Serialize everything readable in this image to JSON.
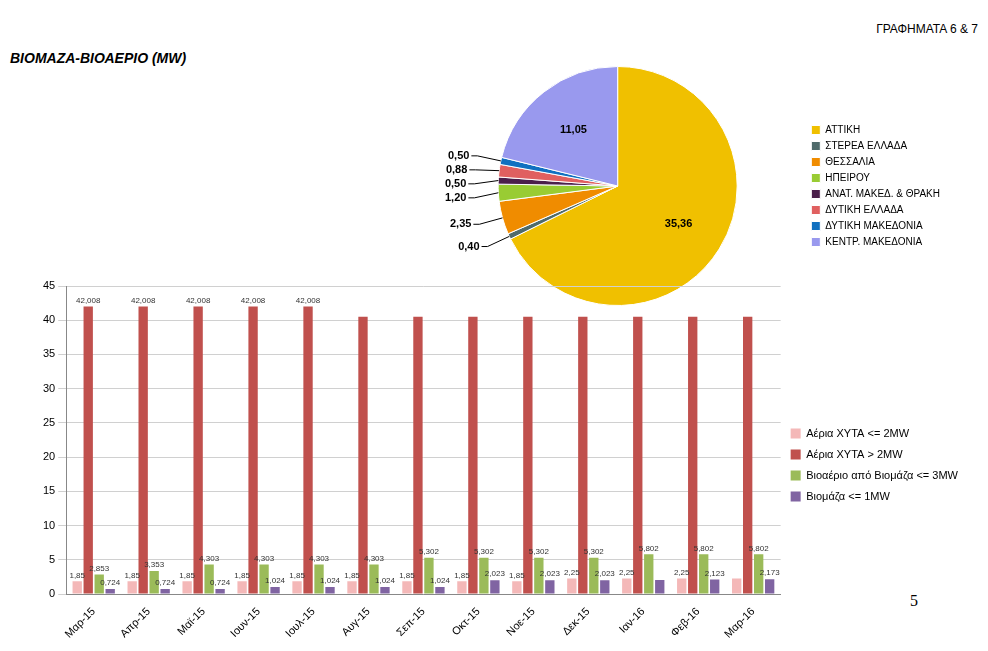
{
  "page": {
    "heading": "ΒΙΟΜΑΖΑ-ΒΙΟΑΕΡΙΟ (MW)",
    "label": "ΓΡΑΦΗΜΑΤΑ 6 & 7",
    "page_number": "5"
  },
  "chart_data": [
    {
      "type": "pie",
      "categories": [
        "ΑΤΤΙΚΗ",
        "ΣΤΕΡΕΑ ΕΛΛΑΔΑ",
        "ΘΕΣΣΑΛΙΑ",
        "ΗΠΕΙΡΟΥ",
        "ΑΝΑΤ. ΜΑΚΕΔ. & ΘΡΑΚΗ",
        "ΔΥΤΙΚΗ ΕΛΛΑΔΑ",
        "ΔΥΤΙΚΗ ΜΑΚΕΔΟΝΙΑ",
        "ΚΕΝΤΡ. ΜΑΚΕΔΟΝΙΑ"
      ],
      "values": [
        35.36,
        0.4,
        2.35,
        1.2,
        0.5,
        0.88,
        0.5,
        11.05
      ],
      "value_labels": [
        "35,36",
        "0,40",
        "2,35",
        "1,20",
        "0,50",
        "0,88",
        "0,50",
        "11,05"
      ],
      "colors": [
        "#f0c000",
        "#4f6b6b",
        "#f08c00",
        "#99cc33",
        "#4b1f4b",
        "#e06060",
        "#1070c0",
        "#9999ee"
      ],
      "data_labels": true,
      "legend": "right"
    },
    {
      "type": "bar",
      "categories": [
        "Μαρ-15",
        "Απρ-15",
        "Μαϊ-15",
        "Ιουν-15",
        "Ιουλ-15",
        "Αυγ-15",
        "Σεπ-15",
        "Οκτ-15",
        "Νοε-15",
        "Δεκ-15",
        "Ιαν-16",
        "Φεβ-16",
        "Μαρ-16"
      ],
      "series": [
        {
          "name": "Αέρια ΧΥΤΑ <= 2MW",
          "color": "#f4b8b8",
          "values": [
            1.85,
            1.85,
            1.85,
            1.85,
            1.85,
            1.85,
            1.85,
            1.85,
            1.85,
            2.25,
            2.25,
            2.25,
            2.25
          ],
          "value_labels": [
            "1,85",
            "1,85",
            "1,85",
            "1,85",
            "1,85",
            "1,85",
            "1,85",
            "1,85",
            "1,85",
            "2,25",
            "2,25",
            "2,25",
            null
          ]
        },
        {
          "name": "Αέρια ΧΥΤΑ > 2MW",
          "color": "#c0504d",
          "values": [
            42.008,
            42.008,
            42.008,
            42.008,
            42.008,
            40.5,
            40.5,
            40.5,
            40.5,
            40.5,
            40.5,
            40.5,
            40.5
          ],
          "value_labels": [
            "42,008",
            "42,008",
            "42,008",
            "42,008",
            "42,008",
            null,
            null,
            null,
            null,
            null,
            null,
            null,
            null
          ]
        },
        {
          "name": "Βιοαέριο από Βιομάζα <= 3MW",
          "color": "#9bbb59",
          "values": [
            2.853,
            3.353,
            4.303,
            4.303,
            4.303,
            4.303,
            5.302,
            5.302,
            5.302,
            5.302,
            5.802,
            5.802,
            5.802
          ],
          "value_labels": [
            "2,853",
            "3,353",
            "4,303",
            "4,303",
            "4,303",
            "4,303",
            "5,302",
            "5,302",
            "5,302",
            "5,302",
            "5,802",
            "5,802",
            "5,802"
          ]
        },
        {
          "name": "Βιομάζα <= 1MW",
          "color": "#8064a2",
          "values": [
            0.724,
            0.724,
            0.724,
            1.024,
            1.024,
            1.024,
            1.024,
            2.023,
            2.023,
            2.023,
            2.05,
            2.123,
            2.173
          ],
          "value_labels": [
            "0,724",
            "0,724",
            "0,724",
            "1,024",
            "1,024",
            "1,024",
            "1,024",
            "2,023",
            "2,023",
            "2,023",
            null,
            "2,123",
            "2,173"
          ]
        }
      ],
      "ylim": [
        0,
        45
      ],
      "yticks": [
        0,
        5,
        10,
        15,
        20,
        25,
        30,
        35,
        40,
        45
      ],
      "grid": true,
      "legend": "right",
      "data_labels": true
    }
  ]
}
